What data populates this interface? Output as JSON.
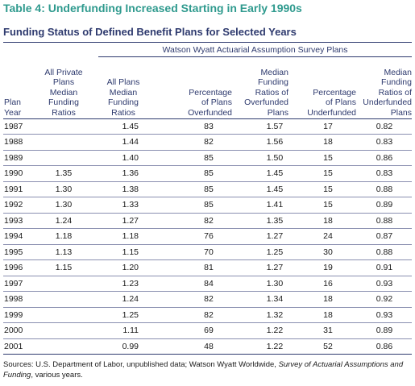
{
  "title": "Table 4: Underfunding Increased Starting in Early 1990s",
  "subtitle": "Funding Status of Defined Benefit Plans for Selected Years",
  "survey_header": "Watson Wyatt Actuarial Assumption Survey Plans",
  "columns": {
    "plan_year": "Plan\nYear",
    "private_median": "All Private\nPlans\nMedian\nFunding\nRatios",
    "all_median": "All Plans\nMedian\nFunding\nRatios",
    "pct_overfunded": "Percentage\nof Plans\nOverfunded",
    "median_overfunded": "Median\nFunding\nRatios of\nOverfunded\nPlans",
    "pct_underfunded": "Percentage\nof Plans\nUnderfunded",
    "median_underfunded": "Median\nFunding\nRatios of\nUnderfunded\nPlans"
  },
  "rows": [
    {
      "year": "1987",
      "priv": "",
      "all": "1.45",
      "pct_over": "83",
      "med_over": "1.57",
      "pct_under": "17",
      "med_under": "0.82"
    },
    {
      "year": "1988",
      "priv": "",
      "all": "1.44",
      "pct_over": "82",
      "med_over": "1.56",
      "pct_under": "18",
      "med_under": "0.83"
    },
    {
      "year": "1989",
      "priv": "",
      "all": "1.40",
      "pct_over": "85",
      "med_over": "1.50",
      "pct_under": "15",
      "med_under": "0.86"
    },
    {
      "year": "1990",
      "priv": "1.35",
      "all": "1.36",
      "pct_over": "85",
      "med_over": "1.45",
      "pct_under": "15",
      "med_under": "0.83"
    },
    {
      "year": "1991",
      "priv": "1.30",
      "all": "1.38",
      "pct_over": "85",
      "med_over": "1.45",
      "pct_under": "15",
      "med_under": "0.88"
    },
    {
      "year": "1992",
      "priv": "1.30",
      "all": "1.33",
      "pct_over": "85",
      "med_over": "1.41",
      "pct_under": "15",
      "med_under": "0.89"
    },
    {
      "year": "1993",
      "priv": "1.24",
      "all": "1.27",
      "pct_over": "82",
      "med_over": "1.35",
      "pct_under": "18",
      "med_under": "0.88"
    },
    {
      "year": "1994",
      "priv": "1.18",
      "all": "1.18",
      "pct_over": "76",
      "med_over": "1.27",
      "pct_under": "24",
      "med_under": "0.87"
    },
    {
      "year": "1995",
      "priv": "1.13",
      "all": "1.15",
      "pct_over": "70",
      "med_over": "1.25",
      "pct_under": "30",
      "med_under": "0.88"
    },
    {
      "year": "1996",
      "priv": "1.15",
      "all": "1.20",
      "pct_over": "81",
      "med_over": "1.27",
      "pct_under": "19",
      "med_under": "0.91"
    },
    {
      "year": "1997",
      "priv": "",
      "all": "1.23",
      "pct_over": "84",
      "med_over": "1.30",
      "pct_under": "16",
      "med_under": "0.93"
    },
    {
      "year": "1998",
      "priv": "",
      "all": "1.24",
      "pct_over": "82",
      "med_over": "1.34",
      "pct_under": "18",
      "med_under": "0.92"
    },
    {
      "year": "1999",
      "priv": "",
      "all": "1.25",
      "pct_over": "82",
      "med_over": "1.32",
      "pct_under": "18",
      "med_under": "0.93"
    },
    {
      "year": "2000",
      "priv": "",
      "all": "1.11",
      "pct_over": "69",
      "med_over": "1.22",
      "pct_under": "31",
      "med_under": "0.89"
    },
    {
      "year": "2001",
      "priv": "",
      "all": "0.99",
      "pct_over": "48",
      "med_over": "1.22",
      "pct_under": "52",
      "med_under": "0.86"
    }
  ],
  "sources": {
    "prefix": "Sources: U.S. Department of Labor, unpublished data; Watson Wyatt Worldwide, ",
    "italic": "Survey of Actuarial Assumptions and Funding",
    "suffix": ", various years."
  },
  "colors": {
    "title": "#2f9a8e",
    "header": "#2e3a6e",
    "text": "#1a1a1a"
  }
}
